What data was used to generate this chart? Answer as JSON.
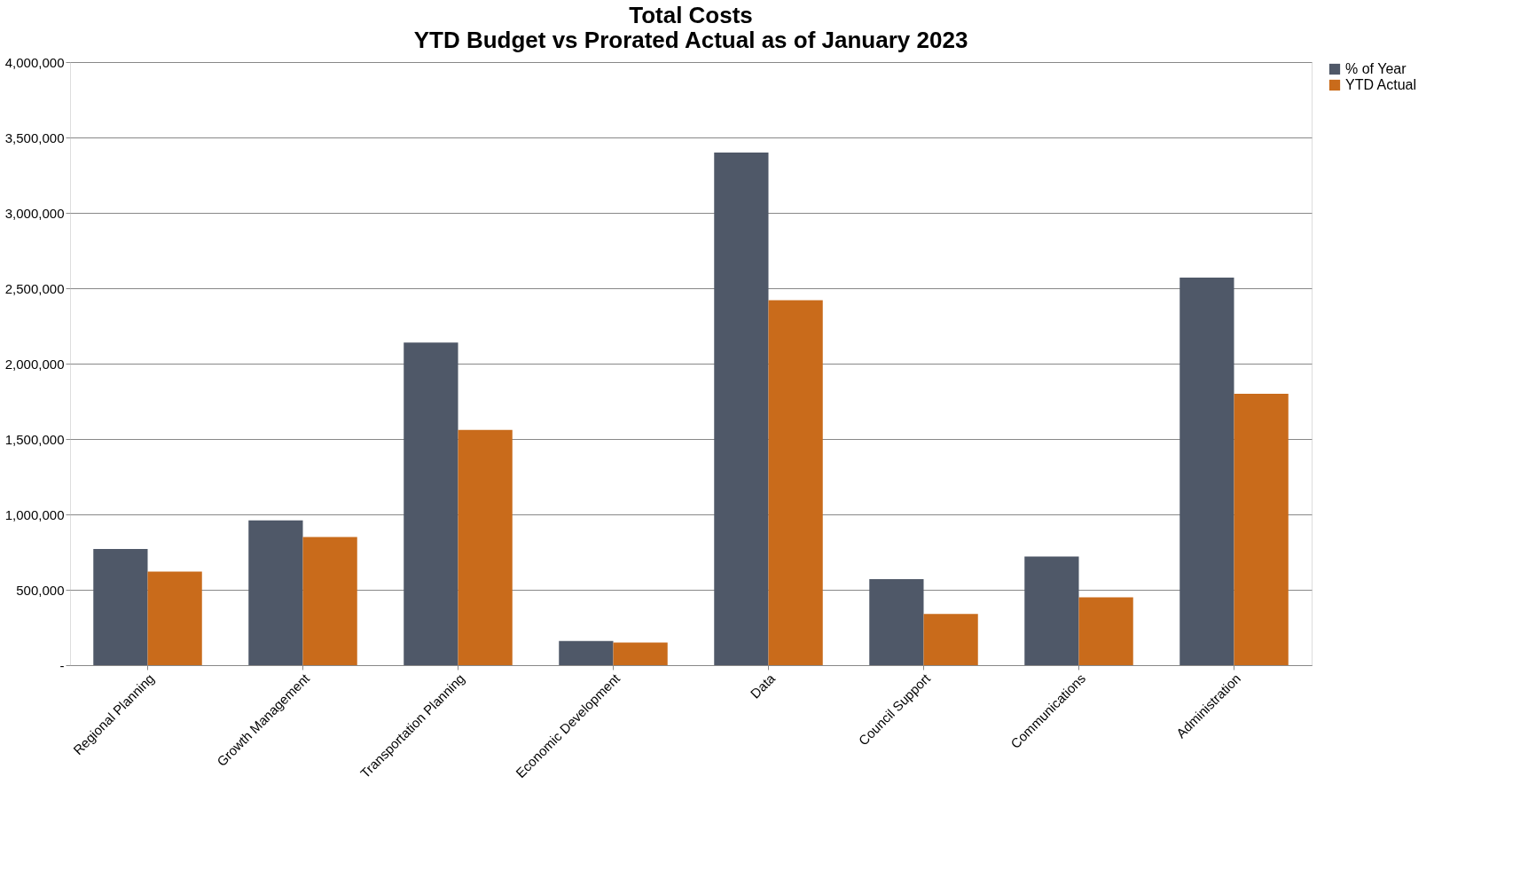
{
  "chart_data": {
    "type": "bar",
    "title": [
      "Total Costs",
      "YTD Budget vs Prorated Actual as of January 2023"
    ],
    "categories": [
      "Regional Planning",
      "Growth Management",
      "Transportation Planning",
      "Economic Development",
      "Data",
      "Council Support",
      "Communications",
      "Administration"
    ],
    "series": [
      {
        "name": "% of Year",
        "color": "#4f5868",
        "values": [
          770000,
          960000,
          2140000,
          160000,
          3400000,
          570000,
          720000,
          2570000
        ]
      },
      {
        "name": "YTD Actual",
        "color": "#c96b1b",
        "values": [
          620000,
          850000,
          1560000,
          150000,
          2420000,
          340000,
          450000,
          1800000
        ]
      }
    ],
    "ylim": [
      0,
      4000000
    ],
    "yticks": [
      {
        "value": 0,
        "label": "-"
      },
      {
        "value": 500000,
        "label": "500,000"
      },
      {
        "value": 1000000,
        "label": "1,000,000"
      },
      {
        "value": 1500000,
        "label": "1,500,000"
      },
      {
        "value": 2000000,
        "label": "2,000,000"
      },
      {
        "value": 2500000,
        "label": "2,500,000"
      },
      {
        "value": 3000000,
        "label": "3,000,000"
      },
      {
        "value": 3500000,
        "label": "3,500,000"
      },
      {
        "value": 4000000,
        "label": "4,000,000"
      }
    ],
    "grid": "y",
    "legend": "right"
  }
}
